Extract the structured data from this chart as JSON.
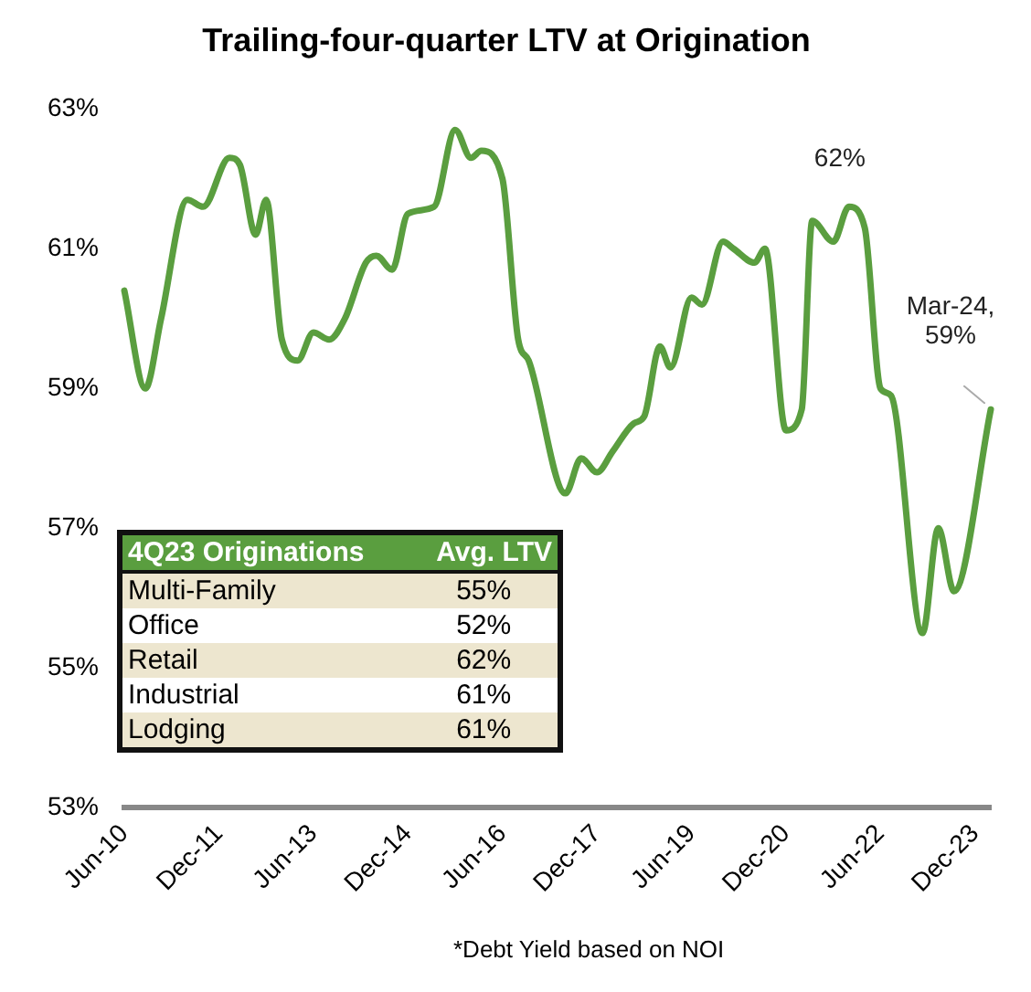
{
  "chart_data": {
    "type": "line",
    "title": "Trailing-four-quarter LTV at Origination",
    "x": [
      "2010-06",
      "2010-10",
      "2011-01",
      "2011-06",
      "2011-09",
      "2012-02",
      "2012-04",
      "2012-07",
      "2012-09",
      "2012-12",
      "2013-03",
      "2013-06",
      "2013-09",
      "2013-12",
      "2014-04",
      "2014-06",
      "2014-09",
      "2014-12",
      "2015-05",
      "2015-09",
      "2015-12",
      "2016-02",
      "2016-06",
      "2016-09",
      "2016-11",
      "2017-06",
      "2017-09",
      "2017-12",
      "2018-03",
      "2018-07",
      "2018-09",
      "2018-12",
      "2019-02",
      "2019-06",
      "2019-08",
      "2019-12",
      "2020-02",
      "2020-06",
      "2020-08",
      "2020-12",
      "2021-03",
      "2021-05",
      "2021-09",
      "2021-12",
      "2022-03",
      "2022-06",
      "2022-08",
      "2023-02",
      "2023-05",
      "2023-08",
      "2024-03"
    ],
    "series": [
      {
        "color": "#5a9e3f",
        "values": [
          60.4,
          59.0,
          60.0,
          61.7,
          61.6,
          62.3,
          62.2,
          61.2,
          61.7,
          59.7,
          59.4,
          59.8,
          59.7,
          60.0,
          60.8,
          60.9,
          60.7,
          61.5,
          61.6,
          62.7,
          62.3,
          62.4,
          62.0,
          59.7,
          59.4,
          57.5,
          58.0,
          57.8,
          58.1,
          58.5,
          58.6,
          59.6,
          59.3,
          60.3,
          60.2,
          61.1,
          61.0,
          60.8,
          61.0,
          58.4,
          58.7,
          61.4,
          61.1,
          61.6,
          61.3,
          59.0,
          58.9,
          55.5,
          57.0,
          56.1,
          58.7
        ]
      }
    ],
    "xlim": [
      "2010-06",
      "2024-03"
    ],
    "xticks": [
      {
        "value": "2010-06",
        "label": "Jun-10"
      },
      {
        "value": "2011-12",
        "label": "Dec-11"
      },
      {
        "value": "2013-06",
        "label": "Jun-13"
      },
      {
        "value": "2014-12",
        "label": "Dec-14"
      },
      {
        "value": "2016-06",
        "label": "Jun-16"
      },
      {
        "value": "2017-12",
        "label": "Dec-17"
      },
      {
        "value": "2019-06",
        "label": "Jun-19"
      },
      {
        "value": "2020-12",
        "label": "Dec-20"
      },
      {
        "value": "2022-06",
        "label": "Jun-22"
      },
      {
        "value": "2023-12",
        "label": "Dec-23"
      }
    ],
    "ylim": [
      53,
      63
    ],
    "yticks": [
      {
        "value": 53,
        "label": "53%"
      },
      {
        "value": 55,
        "label": "55%"
      },
      {
        "value": 57,
        "label": "57%"
      },
      {
        "value": 59,
        "label": "59%"
      },
      {
        "value": 61,
        "label": "61%"
      },
      {
        "value": 63,
        "label": "63%"
      }
    ],
    "grid": false,
    "legend": false,
    "marker": "none",
    "line_style": "solid",
    "annotations": [
      {
        "text": "62%",
        "x": "2021-12",
        "y": 61.6
      },
      {
        "text": "Mar-24,\n59%",
        "x": "2024-03",
        "y": 58.7
      },
      "4Q23 Originations",
      "Avg. LTV",
      "Multi-Family",
      "55%",
      "Office",
      "52%",
      "Retail",
      "62%",
      "Industrial",
      "61%",
      "Lodging",
      "61%",
      "*Debt Yield based on NOI"
    ]
  }
}
